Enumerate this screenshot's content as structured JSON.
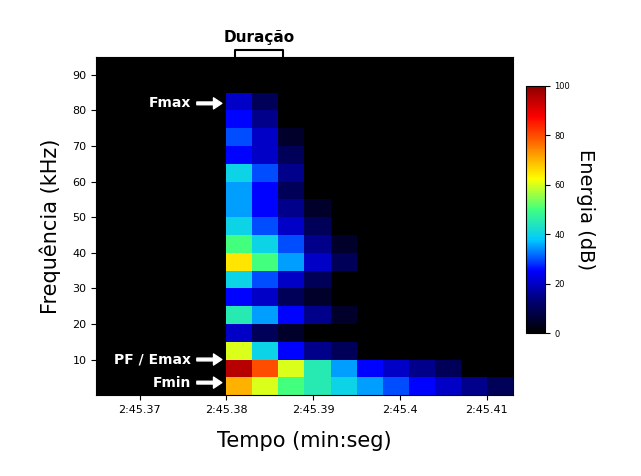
{
  "chart_data": {
    "type": "heatmap",
    "x_label": "Tempo (min:seg)",
    "y_label": "Frequência (kHz)",
    "x_edges": [
      165.365,
      165.368,
      165.371,
      165.374,
      165.377,
      165.38,
      165.383,
      165.386,
      165.389,
      165.392,
      165.395,
      165.398,
      165.401,
      165.404,
      165.407,
      165.41,
      165.413
    ],
    "y_edges": [
      0,
      5,
      10,
      15,
      20,
      25,
      30,
      35,
      40,
      45,
      50,
      55,
      60,
      65,
      70,
      75,
      80,
      85,
      90,
      95
    ],
    "cells": [
      [
        0,
        0,
        0,
        0,
        0,
        70,
        60,
        50,
        45,
        40,
        35,
        30,
        25,
        20,
        15,
        10
      ],
      [
        0,
        0,
        0,
        0,
        0,
        95,
        80,
        60,
        45,
        35,
        25,
        20,
        15,
        10,
        0,
        0
      ],
      [
        0,
        0,
        0,
        0,
        0,
        60,
        40,
        25,
        15,
        10,
        0,
        0,
        0,
        0,
        0,
        0
      ],
      [
        0,
        0,
        0,
        0,
        0,
        20,
        10,
        5,
        0,
        0,
        0,
        0,
        0,
        0,
        0,
        0
      ],
      [
        0,
        0,
        0,
        0,
        0,
        45,
        35,
        25,
        15,
        5,
        0,
        0,
        0,
        0,
        0,
        0
      ],
      [
        0,
        0,
        0,
        0,
        0,
        25,
        20,
        10,
        5,
        0,
        0,
        0,
        0,
        0,
        0,
        0
      ],
      [
        0,
        0,
        0,
        0,
        0,
        40,
        30,
        20,
        10,
        0,
        0,
        0,
        0,
        0,
        0,
        0
      ],
      [
        0,
        0,
        0,
        0,
        0,
        65,
        50,
        35,
        20,
        10,
        0,
        0,
        0,
        0,
        0,
        0
      ],
      [
        0,
        0,
        0,
        0,
        0,
        50,
        40,
        30,
        15,
        5,
        0,
        0,
        0,
        0,
        0,
        0
      ],
      [
        0,
        0,
        0,
        0,
        0,
        40,
        30,
        20,
        10,
        0,
        0,
        0,
        0,
        0,
        0,
        0
      ],
      [
        0,
        0,
        0,
        0,
        0,
        35,
        25,
        15,
        5,
        0,
        0,
        0,
        0,
        0,
        0,
        0
      ],
      [
        0,
        0,
        0,
        0,
        0,
        35,
        25,
        10,
        0,
        0,
        0,
        0,
        0,
        0,
        0,
        0
      ],
      [
        0,
        0,
        0,
        0,
        0,
        40,
        30,
        15,
        0,
        0,
        0,
        0,
        0,
        0,
        0,
        0
      ],
      [
        0,
        0,
        0,
        0,
        0,
        25,
        20,
        10,
        0,
        0,
        0,
        0,
        0,
        0,
        0,
        0
      ],
      [
        0,
        0,
        0,
        0,
        0,
        30,
        20,
        5,
        0,
        0,
        0,
        0,
        0,
        0,
        0,
        0
      ],
      [
        0,
        0,
        0,
        0,
        0,
        25,
        15,
        0,
        0,
        0,
        0,
        0,
        0,
        0,
        0,
        0
      ],
      [
        0,
        0,
        0,
        0,
        0,
        20,
        10,
        0,
        0,
        0,
        0,
        0,
        0,
        0,
        0,
        0
      ],
      [
        0,
        0,
        0,
        0,
        0,
        0,
        0,
        0,
        0,
        0,
        0,
        0,
        0,
        0,
        0,
        0
      ],
      [
        0,
        0,
        0,
        0,
        0,
        0,
        0,
        0,
        0,
        0,
        0,
        0,
        0,
        0,
        0,
        0
      ]
    ],
    "xlim": [
      165.365,
      165.413
    ],
    "xticks": [
      {
        "value": 165.37,
        "label": "2:45.37"
      },
      {
        "value": 165.38,
        "label": "2:45.38"
      },
      {
        "value": 165.39,
        "label": "2:45.39"
      },
      {
        "value": 165.4,
        "label": "2:45.4"
      },
      {
        "value": 165.41,
        "label": "2:45.41"
      }
    ],
    "ylim": [
      0,
      95
    ],
    "yticks": [
      10,
      20,
      30,
      40,
      50,
      60,
      70,
      80,
      90
    ],
    "colorbar": {
      "label": "Energia (dB)",
      "range": [
        0,
        100
      ],
      "ticks": [
        0,
        20,
        40,
        60,
        80,
        100
      ]
    },
    "annotations": [
      {
        "text": "Fmax",
        "x": 165.3798,
        "y": 82
      },
      {
        "text": "PF / Emax",
        "x": 165.3798,
        "y": 10
      },
      {
        "text": "Fmin",
        "x": 165.3798,
        "y": 3.5
      }
    ],
    "span": {
      "text": "Duração",
      "x": [
        165.381,
        165.3865
      ]
    }
  }
}
